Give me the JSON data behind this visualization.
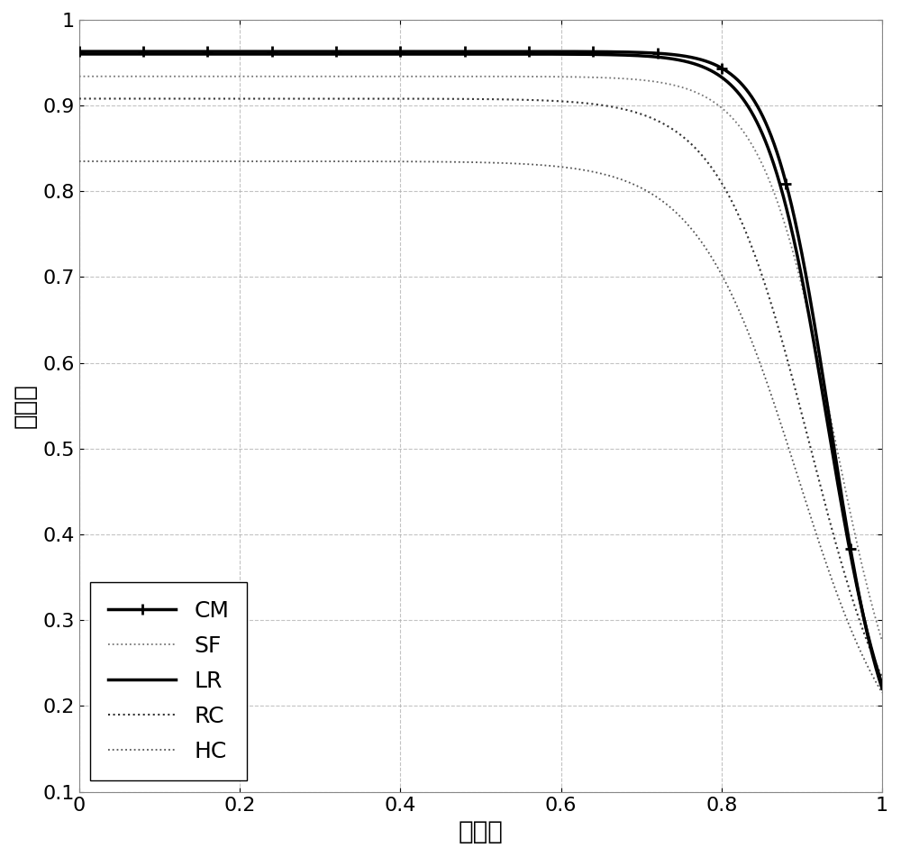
{
  "title": "",
  "xlabel": "召回率",
  "ylabel": "精确度",
  "xlim": [
    0,
    1
  ],
  "ylim": [
    0.1,
    1.0
  ],
  "xticks": [
    0,
    0.2,
    0.4,
    0.6,
    0.8,
    1.0
  ],
  "yticks": [
    0.1,
    0.2,
    0.3,
    0.4,
    0.5,
    0.6,
    0.7,
    0.8,
    0.9,
    1.0
  ],
  "curves": [
    {
      "name": "CM",
      "color": "#000000",
      "linewidth": 2.5,
      "linestyle": "-",
      "marker": "+",
      "markevery": 0.08,
      "markersize": 9,
      "markeredgewidth": 2.0,
      "start_p": 0.963,
      "inflection": 0.935,
      "steepness": 28.0,
      "end_p": 0.1,
      "zorder": 7
    },
    {
      "name": "SF",
      "color": "#777777",
      "linewidth": 1.3,
      "linestyle": ":",
      "marker": null,
      "markevery": null,
      "markersize": 0,
      "markeredgewidth": 0,
      "start_p": 0.934,
      "inflection": 0.94,
      "steepness": 22.0,
      "end_p": 0.1,
      "zorder": 5
    },
    {
      "name": "LR",
      "color": "#000000",
      "linewidth": 2.5,
      "linestyle": "-",
      "marker": null,
      "markevery": null,
      "markersize": 0,
      "markeredgewidth": 0,
      "start_p": 0.96,
      "inflection": 0.932,
      "steepness": 26.0,
      "end_p": 0.1,
      "zorder": 6
    },
    {
      "name": "RC",
      "color": "#333333",
      "linewidth": 1.5,
      "linestyle": ":",
      "marker": null,
      "markevery": null,
      "markersize": 0,
      "markeredgewidth": 0,
      "start_p": 0.908,
      "inflection": 0.91,
      "steepness": 18.0,
      "end_p": 0.1,
      "zorder": 4
    },
    {
      "name": "HC",
      "color": "#555555",
      "linewidth": 1.3,
      "linestyle": ":",
      "marker": null,
      "markevery": null,
      "markersize": 0,
      "markeredgewidth": 0,
      "start_p": 0.835,
      "inflection": 0.895,
      "steepness": 16.0,
      "end_p": 0.1,
      "zorder": 3
    }
  ],
  "legend_loc": "lower left",
  "background_color": "#ffffff",
  "grid_color": "#aaaaaa",
  "grid_linestyle": "--",
  "grid_alpha": 0.7,
  "xlabel_fontsize": 20,
  "ylabel_fontsize": 20,
  "tick_fontsize": 16,
  "legend_fontsize": 18
}
